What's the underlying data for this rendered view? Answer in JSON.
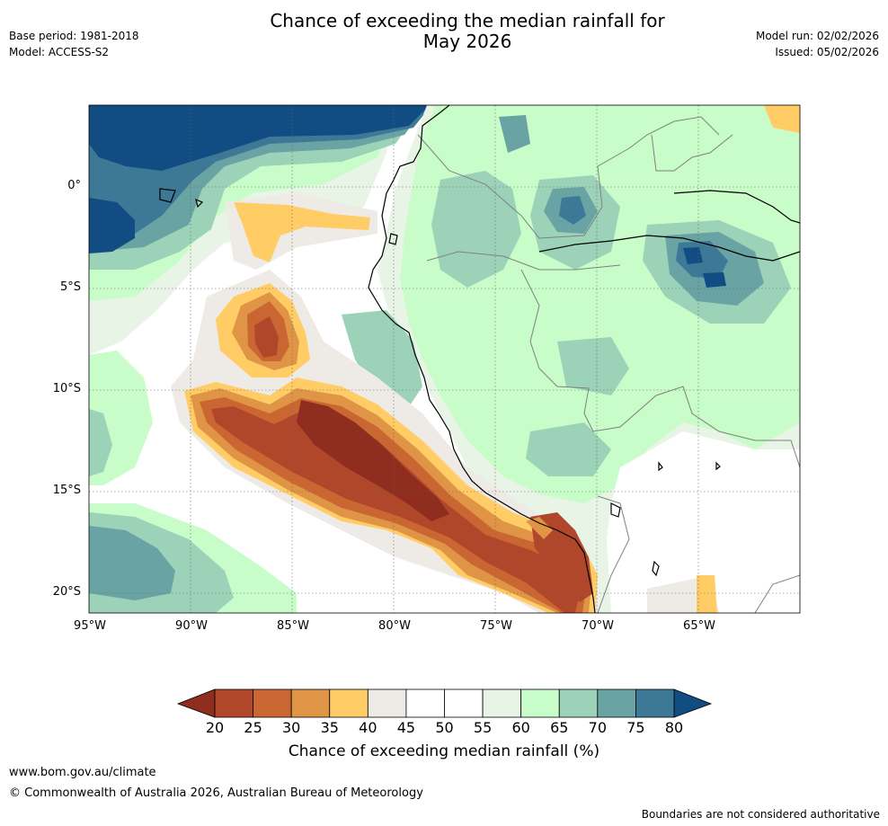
{
  "title": {
    "line1": "Chance of exceeding the median rainfall for",
    "line2": "May 2026"
  },
  "meta": {
    "base_period": "Base period: 1981-2018",
    "model": "Model: ACCESS-S2",
    "model_run": "Model run: 02/02/2026",
    "issued": "Issued: 05/02/2026"
  },
  "map": {
    "lat_labels": [
      "0°",
      "5°S",
      "10°S",
      "15°S",
      "20°S"
    ],
    "lon_labels": [
      "95°W",
      "90°W",
      "85°W",
      "80°W",
      "75°W",
      "70°W",
      "65°W"
    ],
    "colors": {
      "c20": "#8f2d1f",
      "c25": "#b1472a",
      "c30": "#ca6632",
      "c35": "#e09446",
      "c40": "#ffcc66",
      "c45": "#eeeae6",
      "c50": "#ffffff",
      "c55": "#ffffff",
      "c60": "#e8f5e6",
      "c65": "#c8fcc8",
      "c70": "#9bd2b8",
      "c75": "#6aa3a4",
      "c80": "#3e7897",
      "cmax": "#114c82",
      "coast": "#000000",
      "border": "#808080"
    }
  },
  "colorbar": {
    "ticks": [
      "20",
      "25",
      "30",
      "35",
      "40",
      "45",
      "50",
      "55",
      "60",
      "65",
      "70",
      "75",
      "80"
    ],
    "label": "Chance of exceeding median rainfall (%)",
    "colors": [
      "#b1472a",
      "#ca6632",
      "#e09446",
      "#ffcc66",
      "#eeeae6",
      "#ffffff",
      "#ffffff",
      "#e8f5e6",
      "#c8fcc8",
      "#9bd2b8",
      "#6aa3a4",
      "#3e7897"
    ],
    "low_arrow": "#8f2d1f",
    "high_arrow": "#114c82"
  },
  "footer": {
    "url": "www.bom.gov.au/climate",
    "copyright": "© Commonwealth of Australia 2026, Australian Bureau of Meteorology",
    "disclaimer": "Boundaries are not considered authoritative"
  }
}
